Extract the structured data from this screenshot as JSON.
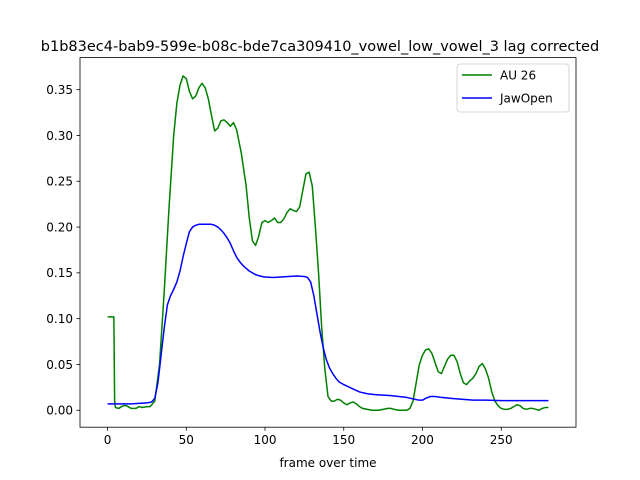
{
  "chart_data": {
    "type": "line",
    "title": "b1b83ec4-bab9-599e-b08c-bde7ca309410_vowel_low_vowel_3  lag corrected",
    "xlabel": "frame over time",
    "ylabel": "",
    "xlim": [
      -17.5,
      297.5
    ],
    "ylim": [
      -0.0185,
      0.385
    ],
    "xticks": [
      0,
      50,
      100,
      150,
      200,
      250
    ],
    "yticks": [
      0.0,
      0.05,
      0.1,
      0.15,
      0.2,
      0.25,
      0.3,
      0.35
    ],
    "xtick_labels": [
      "0",
      "50",
      "100",
      "150",
      "200",
      "250"
    ],
    "ytick_labels": [
      "0.00",
      "0.05",
      "0.10",
      "0.15",
      "0.20",
      "0.25",
      "0.30",
      "0.35"
    ],
    "grid": false,
    "legend_position": "top-right",
    "series": [
      {
        "name": "AU 26",
        "color": "#008000",
        "points": [
          [
            0,
            0.102
          ],
          [
            4,
            0.102
          ],
          [
            4.5,
            0.01
          ],
          [
            5,
            0.003
          ],
          [
            7,
            0.002
          ],
          [
            10,
            0.005
          ],
          [
            12,
            0.005
          ],
          [
            15,
            0.002
          ],
          [
            18,
            0.002
          ],
          [
            20,
            0.004
          ],
          [
            22,
            0.003
          ],
          [
            25,
            0.004
          ],
          [
            27,
            0.004
          ],
          [
            30,
            0.01
          ],
          [
            33,
            0.05
          ],
          [
            36,
            0.13
          ],
          [
            39,
            0.22
          ],
          [
            42,
            0.3
          ],
          [
            44,
            0.335
          ],
          [
            46,
            0.355
          ],
          [
            48,
            0.365
          ],
          [
            50,
            0.362
          ],
          [
            52,
            0.348
          ],
          [
            54,
            0.34
          ],
          [
            56,
            0.343
          ],
          [
            58,
            0.352
          ],
          [
            60,
            0.357
          ],
          [
            62,
            0.352
          ],
          [
            64,
            0.34
          ],
          [
            66,
            0.322
          ],
          [
            68,
            0.305
          ],
          [
            70,
            0.308
          ],
          [
            72,
            0.316
          ],
          [
            74,
            0.317
          ],
          [
            76,
            0.314
          ],
          [
            78,
            0.31
          ],
          [
            80,
            0.314
          ],
          [
            82,
            0.306
          ],
          [
            85,
            0.28
          ],
          [
            88,
            0.245
          ],
          [
            90,
            0.21
          ],
          [
            92,
            0.185
          ],
          [
            94,
            0.18
          ],
          [
            96,
            0.19
          ],
          [
            98,
            0.205
          ],
          [
            100,
            0.207
          ],
          [
            102,
            0.205
          ],
          [
            104,
            0.207
          ],
          [
            106,
            0.21
          ],
          [
            108,
            0.205
          ],
          [
            110,
            0.205
          ],
          [
            112,
            0.209
          ],
          [
            114,
            0.216
          ],
          [
            116,
            0.22
          ],
          [
            118,
            0.218
          ],
          [
            120,
            0.217
          ],
          [
            122,
            0.222
          ],
          [
            124,
            0.24
          ],
          [
            126,
            0.258
          ],
          [
            128,
            0.26
          ],
          [
            130,
            0.245
          ],
          [
            132,
            0.2
          ],
          [
            134,
            0.15
          ],
          [
            136,
            0.09
          ],
          [
            138,
            0.045
          ],
          [
            140,
            0.015
          ],
          [
            142,
            0.01
          ],
          [
            144,
            0.01
          ],
          [
            146,
            0.012
          ],
          [
            148,
            0.011
          ],
          [
            150,
            0.008
          ],
          [
            152,
            0.006
          ],
          [
            154,
            0.008
          ],
          [
            156,
            0.009
          ],
          [
            158,
            0.007
          ],
          [
            160,
            0.004
          ],
          [
            162,
            0.002
          ],
          [
            165,
            0.001
          ],
          [
            168,
            0.0
          ],
          [
            172,
            0.0
          ],
          [
            175,
            0.001
          ],
          [
            178,
            0.002
          ],
          [
            180,
            0.002
          ],
          [
            182,
            0.001
          ],
          [
            185,
            0.0
          ],
          [
            188,
            0.0
          ],
          [
            190,
            0.0
          ],
          [
            192,
            0.002
          ],
          [
            194,
            0.01
          ],
          [
            196,
            0.03
          ],
          [
            198,
            0.05
          ],
          [
            200,
            0.06
          ],
          [
            202,
            0.066
          ],
          [
            204,
            0.067
          ],
          [
            206,
            0.062
          ],
          [
            208,
            0.052
          ],
          [
            210,
            0.042
          ],
          [
            212,
            0.04
          ],
          [
            214,
            0.048
          ],
          [
            216,
            0.056
          ],
          [
            218,
            0.06
          ],
          [
            220,
            0.06
          ],
          [
            222,
            0.053
          ],
          [
            224,
            0.04
          ],
          [
            226,
            0.03
          ],
          [
            228,
            0.028
          ],
          [
            230,
            0.032
          ],
          [
            232,
            0.035
          ],
          [
            234,
            0.04
          ],
          [
            236,
            0.048
          ],
          [
            238,
            0.051
          ],
          [
            240,
            0.045
          ],
          [
            242,
            0.035
          ],
          [
            244,
            0.02
          ],
          [
            246,
            0.01
          ],
          [
            248,
            0.005
          ],
          [
            250,
            0.002
          ],
          [
            252,
            0.001
          ],
          [
            254,
            0.001
          ],
          [
            256,
            0.002
          ],
          [
            258,
            0.004
          ],
          [
            260,
            0.006
          ],
          [
            262,
            0.005
          ],
          [
            264,
            0.002
          ],
          [
            266,
            0.001
          ],
          [
            268,
            0.002
          ],
          [
            270,
            0.002
          ],
          [
            272,
            0.001
          ],
          [
            274,
            0.0
          ],
          [
            276,
            0.002
          ],
          [
            278,
            0.003
          ],
          [
            280,
            0.003
          ]
        ]
      },
      {
        "name": "JawOpen",
        "color": "#0000ff",
        "points": [
          [
            0,
            0.007
          ],
          [
            5,
            0.007
          ],
          [
            10,
            0.007
          ],
          [
            15,
            0.007
          ],
          [
            20,
            0.0075
          ],
          [
            25,
            0.008
          ],
          [
            28,
            0.009
          ],
          [
            30,
            0.013
          ],
          [
            32,
            0.03
          ],
          [
            34,
            0.06
          ],
          [
            36,
            0.09
          ],
          [
            38,
            0.115
          ],
          [
            40,
            0.125
          ],
          [
            42,
            0.132
          ],
          [
            44,
            0.14
          ],
          [
            46,
            0.152
          ],
          [
            48,
            0.168
          ],
          [
            50,
            0.182
          ],
          [
            52,
            0.195
          ],
          [
            54,
            0.2
          ],
          [
            56,
            0.202
          ],
          [
            58,
            0.203
          ],
          [
            60,
            0.203
          ],
          [
            62,
            0.203
          ],
          [
            64,
            0.203
          ],
          [
            66,
            0.203
          ],
          [
            68,
            0.202
          ],
          [
            70,
            0.2
          ],
          [
            72,
            0.197
          ],
          [
            74,
            0.193
          ],
          [
            76,
            0.188
          ],
          [
            78,
            0.182
          ],
          [
            80,
            0.174
          ],
          [
            82,
            0.167
          ],
          [
            84,
            0.162
          ],
          [
            86,
            0.158
          ],
          [
            88,
            0.155
          ],
          [
            90,
            0.152
          ],
          [
            92,
            0.15
          ],
          [
            94,
            0.148
          ],
          [
            96,
            0.147
          ],
          [
            98,
            0.146
          ],
          [
            100,
            0.1455
          ],
          [
            105,
            0.145
          ],
          [
            110,
            0.1455
          ],
          [
            115,
            0.146
          ],
          [
            120,
            0.1465
          ],
          [
            125,
            0.146
          ],
          [
            127,
            0.145
          ],
          [
            129,
            0.14
          ],
          [
            131,
            0.125
          ],
          [
            133,
            0.105
          ],
          [
            135,
            0.085
          ],
          [
            137,
            0.068
          ],
          [
            139,
            0.055
          ],
          [
            141,
            0.046
          ],
          [
            143,
            0.04
          ],
          [
            145,
            0.035
          ],
          [
            147,
            0.031
          ],
          [
            150,
            0.028
          ],
          [
            155,
            0.024
          ],
          [
            160,
            0.02
          ],
          [
            165,
            0.018
          ],
          [
            170,
            0.017
          ],
          [
            180,
            0.016
          ],
          [
            190,
            0.014
          ],
          [
            195,
            0.012
          ],
          [
            198,
            0.011
          ],
          [
            200,
            0.011
          ],
          [
            202,
            0.013
          ],
          [
            205,
            0.015
          ],
          [
            208,
            0.015
          ],
          [
            212,
            0.014
          ],
          [
            218,
            0.013
          ],
          [
            225,
            0.012
          ],
          [
            232,
            0.011
          ],
          [
            240,
            0.011
          ],
          [
            250,
            0.0105
          ],
          [
            260,
            0.0105
          ],
          [
            270,
            0.0105
          ],
          [
            280,
            0.0105
          ]
        ]
      }
    ]
  }
}
